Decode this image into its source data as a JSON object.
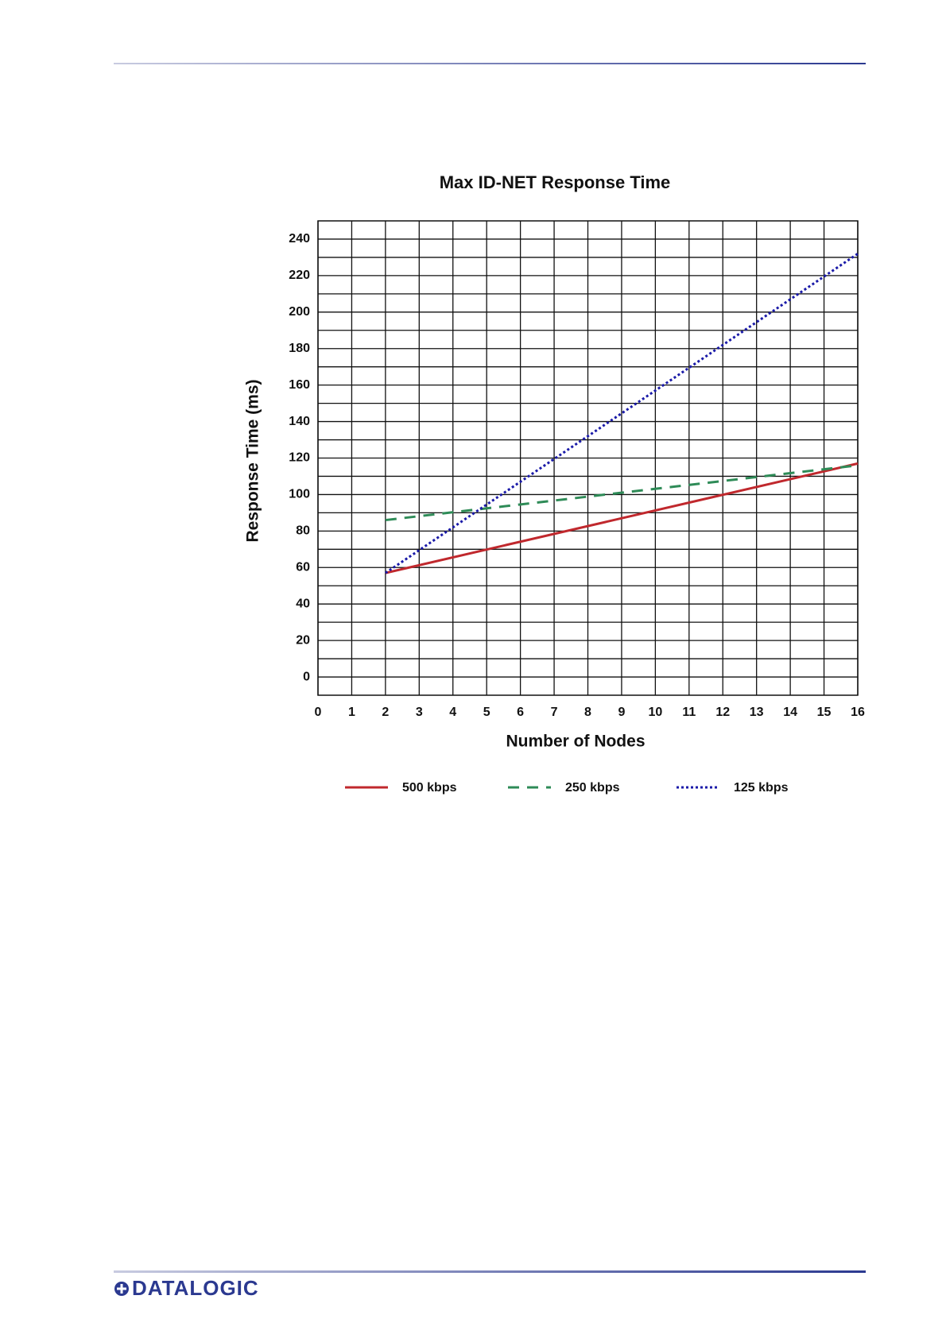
{
  "chart_data": {
    "type": "line",
    "title": "Max ID-NET Response Time",
    "x_label": "Number of Nodes",
    "y_label": "Response Time (ms)",
    "x": [
      2,
      16
    ],
    "series": [
      {
        "name": "500 kbps",
        "color": "#c0282d",
        "dash": "solid",
        "values": [
          57,
          117
        ]
      },
      {
        "name": "250 kbps",
        "color": "#2e8b57",
        "dash": "dashed",
        "values": [
          86,
          116
        ]
      },
      {
        "name": "125 kbps",
        "color": "#1a1aa8",
        "dash": "dotted",
        "values": [
          57,
          232
        ]
      }
    ],
    "xlim": [
      0,
      16
    ],
    "xticks": [
      0,
      1,
      2,
      3,
      4,
      5,
      6,
      7,
      8,
      9,
      10,
      11,
      12,
      13,
      14,
      15,
      16
    ],
    "ylim": [
      -10,
      250
    ],
    "yticks": [
      0,
      20,
      40,
      60,
      80,
      100,
      120,
      140,
      160,
      180,
      200,
      220,
      240
    ],
    "grid": true,
    "legend": "bottom"
  },
  "footer": {
    "logo": "DATALOGIC"
  }
}
